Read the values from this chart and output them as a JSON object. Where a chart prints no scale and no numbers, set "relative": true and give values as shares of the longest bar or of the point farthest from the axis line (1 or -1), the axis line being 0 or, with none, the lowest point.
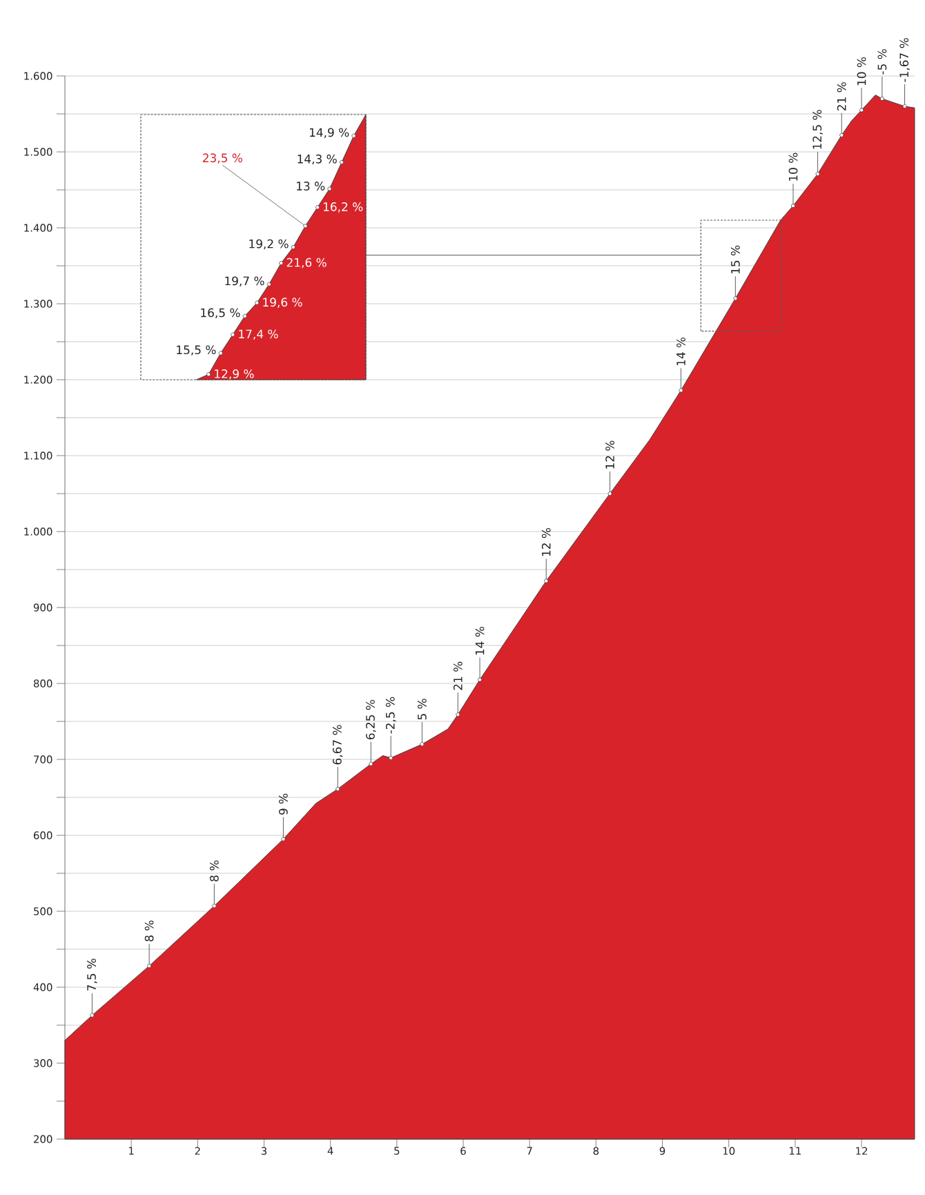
{
  "chart_data": [
    {
      "type": "area",
      "color": "#d9232a",
      "xlim": [
        0,
        12.8
      ],
      "ylim": [
        200,
        1600
      ],
      "grid": "y",
      "x": [
        0,
        0.41,
        1.27,
        2.25,
        3.29,
        3.78,
        4.11,
        4.61,
        4.79,
        4.91,
        5.38,
        5.77,
        5.92,
        6.25,
        6.82,
        7.25,
        8.21,
        8.81,
        9.28,
        10.1,
        10.78,
        10.97,
        11.34,
        11.7,
        11.85,
        12.0,
        12.21,
        12.31,
        12.65,
        12.8
      ],
      "values": [
        330,
        363,
        428,
        507,
        595,
        642,
        661,
        694,
        705,
        702,
        720,
        740,
        759,
        805,
        879,
        935,
        1050,
        1121,
        1186,
        1307,
        1410,
        1429,
        1471,
        1522,
        1541,
        1555,
        1575,
        1570,
        1560,
        1558
      ],
      "xticks": [
        1,
        2,
        3,
        4,
        5,
        6,
        7,
        8,
        9,
        10,
        11,
        12
      ],
      "yticks": [
        200,
        {
          "value": 250,
          "label": null
        },
        300,
        {
          "value": 350,
          "label": null
        },
        400,
        {
          "value": 450,
          "label": null
        },
        500,
        {
          "value": 550,
          "label": null
        },
        600,
        {
          "value": 650,
          "label": null
        },
        700,
        {
          "value": 750,
          "label": null
        },
        800,
        {
          "value": 850,
          "label": null
        },
        900,
        {
          "value": 950,
          "label": null
        },
        {
          "value": 1000,
          "label": "1.000"
        },
        {
          "value": 1050,
          "label": null
        },
        {
          "value": 1100,
          "label": "1.100"
        },
        {
          "value": 1150,
          "label": null
        },
        {
          "value": 1200,
          "label": "1.200"
        },
        {
          "value": 1250,
          "label": null
        },
        {
          "value": 1300,
          "label": "1.300"
        },
        {
          "value": 1350,
          "label": null
        },
        {
          "value": 1400,
          "label": "1.400"
        },
        {
          "value": 1450,
          "label": null
        },
        {
          "value": 1500,
          "label": "1.500"
        },
        {
          "value": 1550,
          "label": null
        },
        {
          "value": 1600,
          "label": "1.600"
        }
      ],
      "annotations": [
        {
          "text": "7,5 %",
          "x": 0.41,
          "y": 363
        },
        {
          "text": "8 %",
          "x": 1.27,
          "y": 428
        },
        {
          "text": "8 %",
          "x": 2.25,
          "y": 507
        },
        {
          "text": "9 %",
          "x": 3.29,
          "y": 595
        },
        {
          "text": "6,67 %",
          "x": 4.11,
          "y": 661
        },
        {
          "text": "6,25 %",
          "x": 4.61,
          "y": 694
        },
        {
          "text": "-2,5 %",
          "x": 4.91,
          "y": 702
        },
        {
          "text": "5 %",
          "x": 5.38,
          "y": 720
        },
        {
          "text": "21 %",
          "x": 5.92,
          "y": 759
        },
        {
          "text": "14 %",
          "x": 6.25,
          "y": 805
        },
        {
          "text": "12 %",
          "x": 7.25,
          "y": 935
        },
        {
          "text": "12 %",
          "x": 8.21,
          "y": 1050
        },
        {
          "text": "14 %",
          "x": 9.28,
          "y": 1186
        },
        {
          "text": "15 %",
          "x": 10.1,
          "y": 1307
        },
        {
          "text": "10 %",
          "x": 10.97,
          "y": 1429
        },
        {
          "text": "12,5 %",
          "x": 11.34,
          "y": 1471
        },
        {
          "text": "21 %",
          "x": 11.7,
          "y": 1522
        },
        {
          "text": "10 %",
          "x": 12.0,
          "y": 1555
        },
        {
          "text": "-5 %",
          "x": 12.31,
          "y": 1570
        },
        {
          "text": "-1,67 %",
          "x": 12.65,
          "y": 1560
        }
      ]
    },
    {
      "type": "area",
      "relative": true,
      "color": "#d9232a",
      "categories": [
        null,
        null,
        null,
        null,
        null,
        null,
        null,
        null,
        null,
        null,
        null,
        null,
        null,
        null,
        null
      ],
      "values": [
        0,
        0.02,
        0.1,
        0.17,
        0.24,
        0.29,
        0.36,
        0.44,
        0.5,
        0.58,
        0.65,
        0.72,
        0.82,
        0.92,
        1
      ],
      "annotations": [
        "12,9 %",
        "15,5 %",
        "17,4 %",
        "16,5 %",
        "19,6 %",
        "19,7 %",
        "21,6 %",
        "19,2 %",
        "23,5 %",
        "16,2 %",
        "13 %",
        "14,3 %",
        "14,9 %"
      ]
    }
  ]
}
